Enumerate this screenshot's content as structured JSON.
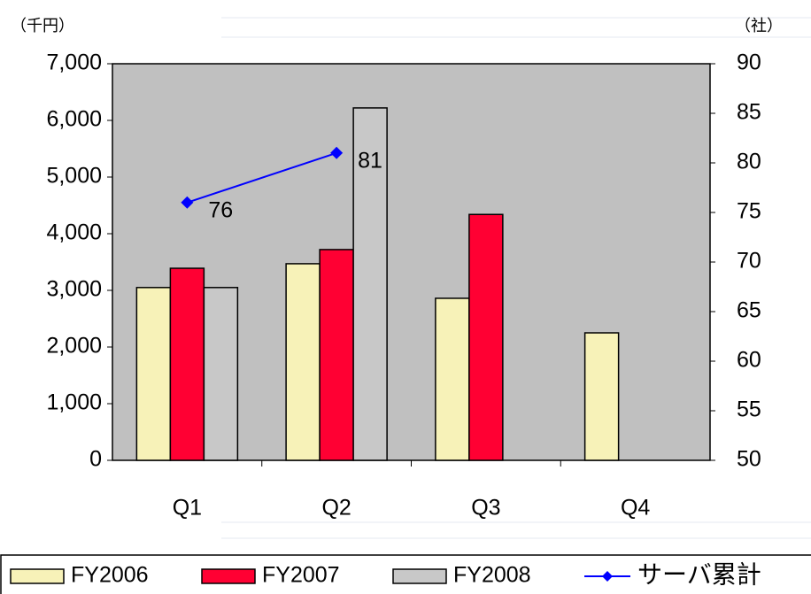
{
  "chart_data": {
    "type": "bar",
    "categories": [
      "Q1",
      "Q2",
      "Q3",
      "Q4"
    ],
    "series": [
      {
        "name": "FY2006",
        "color": "#f7f2b8",
        "values": [
          3050,
          3470,
          2860,
          2250
        ]
      },
      {
        "name": "FY2007",
        "color": "#ff0033",
        "values": [
          3390,
          3720,
          4340,
          null
        ]
      },
      {
        "name": "FY2008",
        "color": "#c8c8c8",
        "values": [
          3050,
          6220,
          null,
          null
        ]
      },
      {
        "name": "サーバ累計",
        "type": "line",
        "axis": "y2",
        "color": "#0000ff",
        "values": [
          76,
          81,
          null,
          null
        ]
      }
    ],
    "ylabel": "（千円）",
    "y2label": "（社）",
    "ylim": [
      0,
      7000
    ],
    "yticks": [
      0,
      {
        "value": 1000,
        "label": "1,000"
      },
      {
        "value": 2000,
        "label": "2,000"
      },
      {
        "value": 3000,
        "label": "3,000"
      },
      {
        "value": 4000,
        "label": "4,000"
      },
      {
        "value": 5000,
        "label": "5,000"
      },
      {
        "value": 6000,
        "label": "6,000"
      },
      {
        "value": 7000,
        "label": "7,000"
      }
    ],
    "y2lim": [
      50,
      90
    ],
    "y2ticks": [
      50,
      55,
      60,
      65,
      70,
      75,
      80,
      85,
      90
    ],
    "legend": "bottom",
    "plot_background": "#c0c0c0"
  }
}
